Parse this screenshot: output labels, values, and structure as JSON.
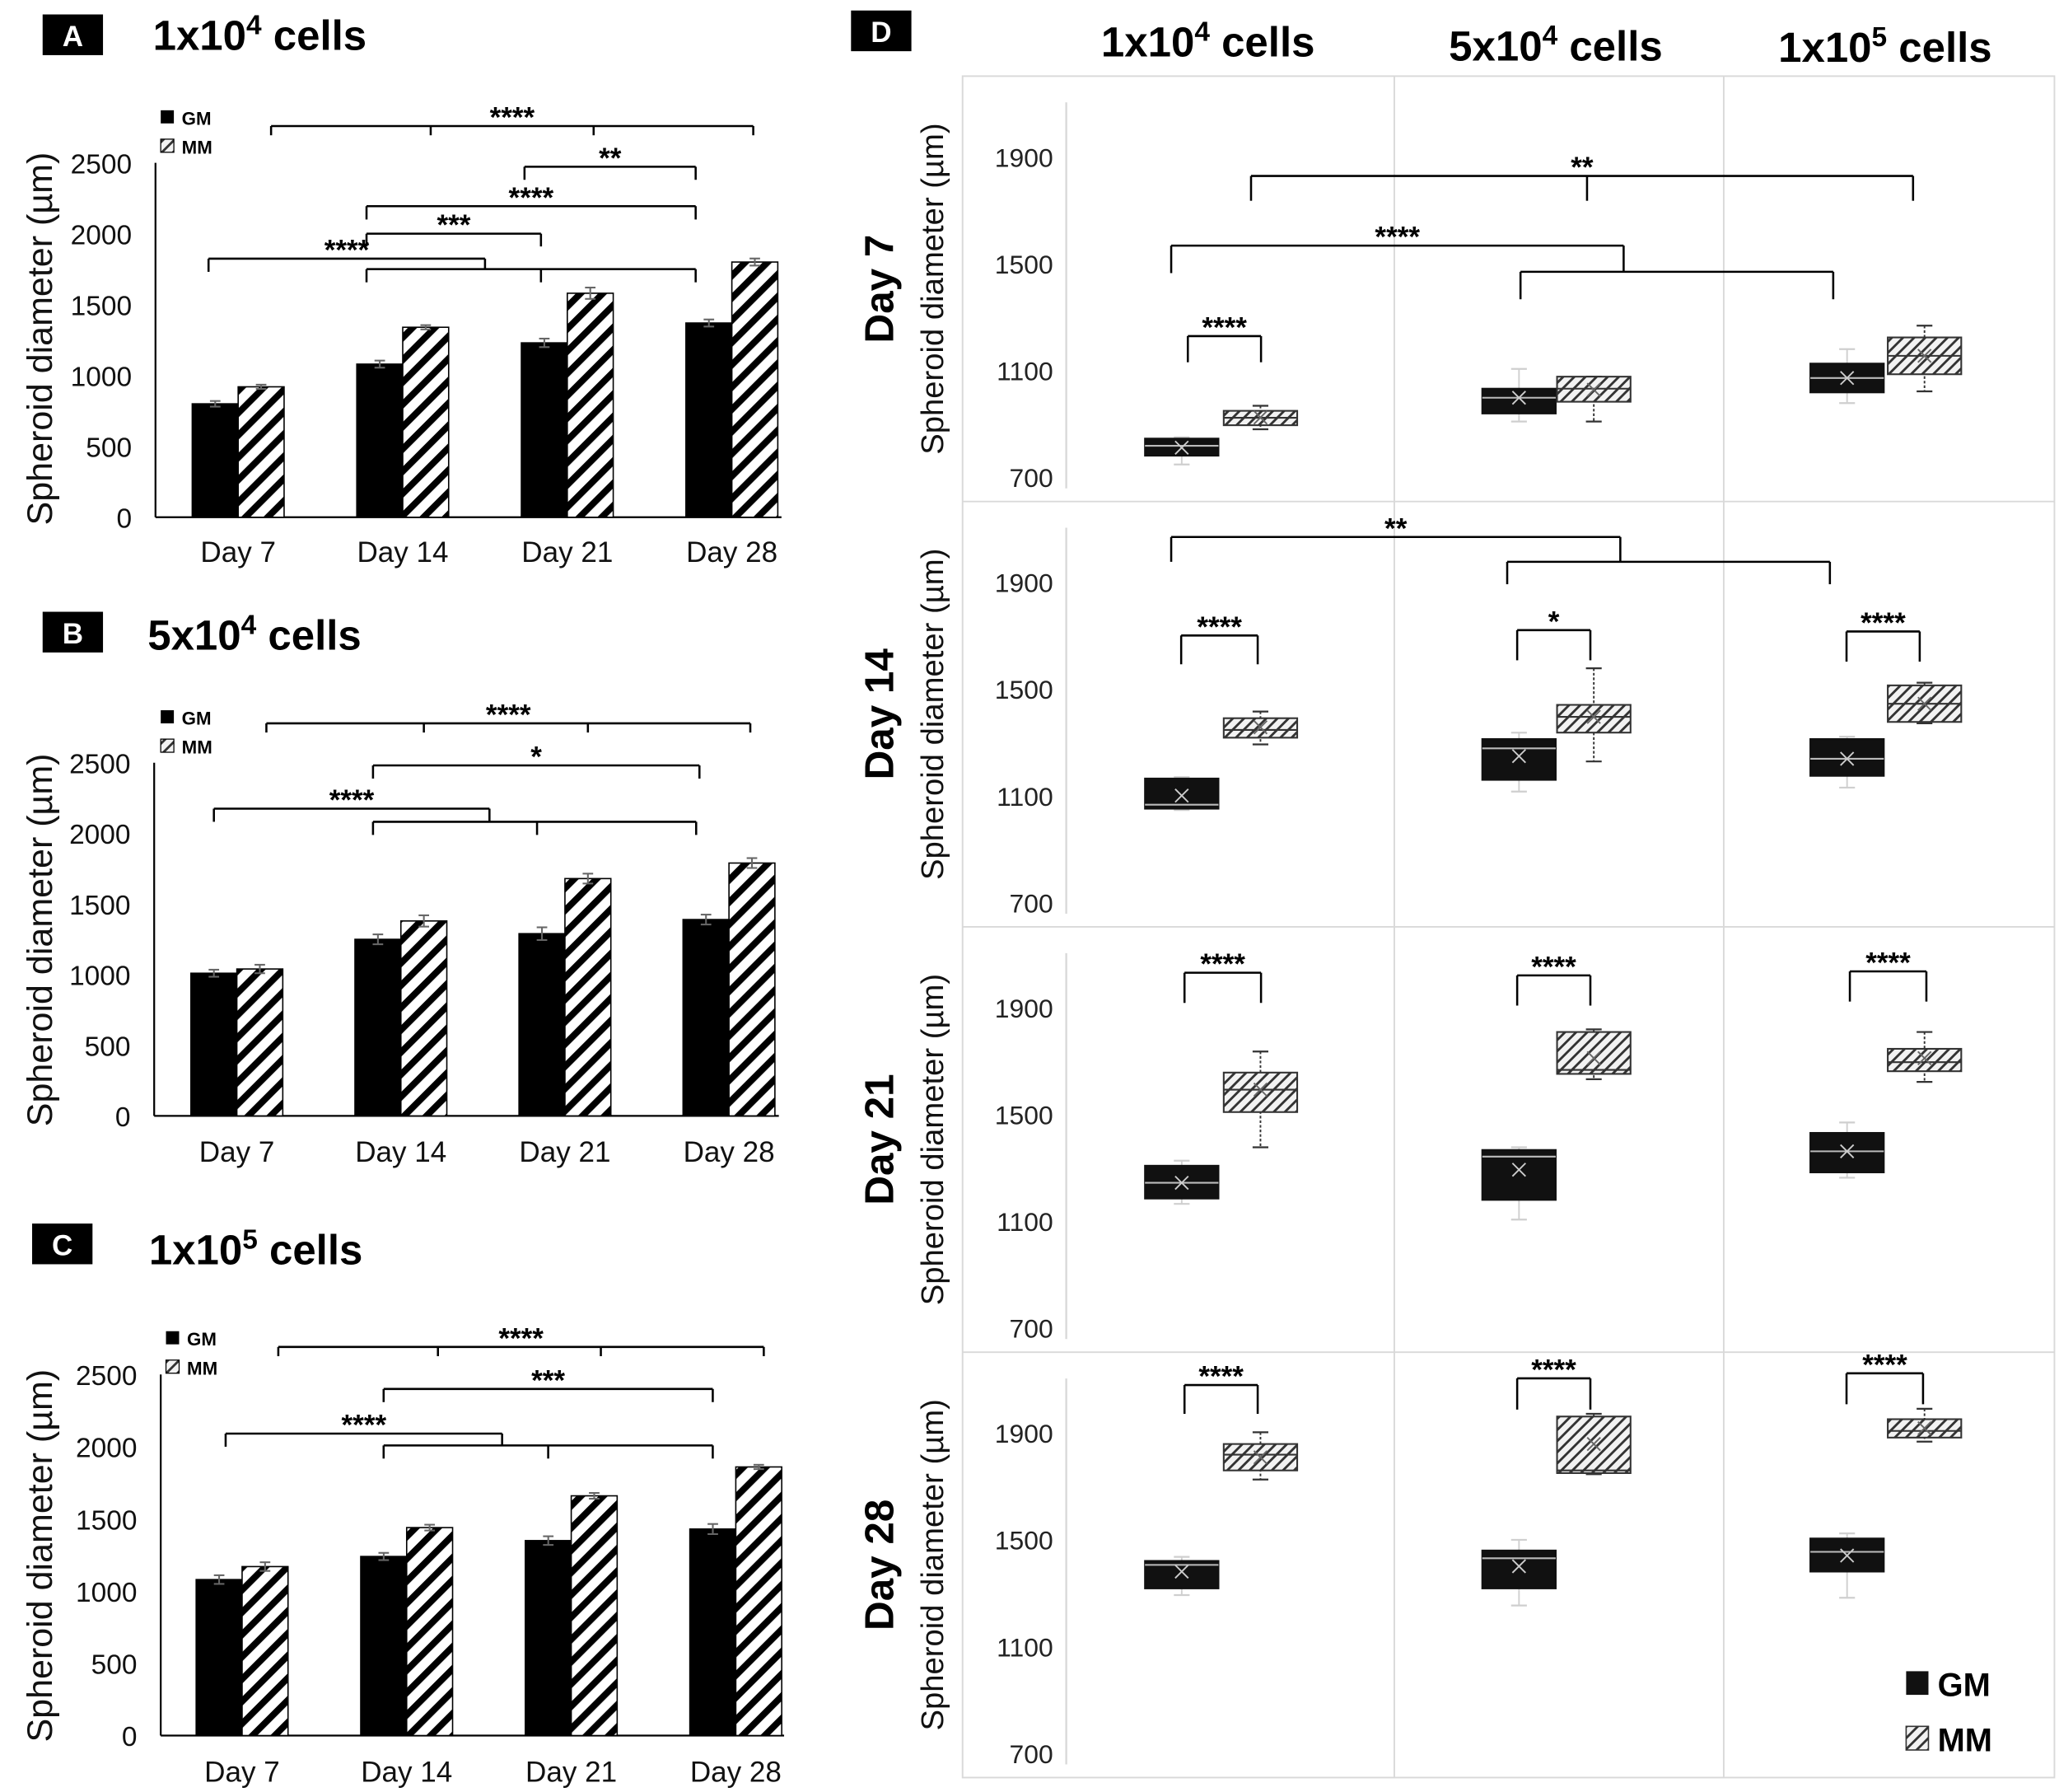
{
  "panel_labels": {
    "A": "A",
    "B": "B",
    "C": "C",
    "D": "D"
  },
  "legend": {
    "gm": "GM",
    "mm": "MM"
  },
  "colors": {
    "gm": "#000000",
    "mm_stripe": "#000000",
    "mm_bg": "#ffffff",
    "box_gm": "#111111",
    "box_mm_stripe": "#333333",
    "grid": "#d9d9d9"
  },
  "chart_data": [
    {
      "type": "bar",
      "panel": "A",
      "title": {
        "base": "1x10",
        "exp": "4",
        "suffix": " cells"
      },
      "ylabel": "Spheroid diameter (µm)",
      "ylim": [
        0,
        2500
      ],
      "yticks": [
        "0",
        "500",
        "1000",
        "1500",
        "2000",
        "2500"
      ],
      "categories": [
        "Day 7",
        "Day 14",
        "Day 21",
        "Day 28"
      ],
      "series": [
        {
          "name": "GM",
          "values": [
            800,
            1080,
            1230,
            1370
          ],
          "errors": [
            20,
            25,
            30,
            25
          ]
        },
        {
          "name": "MM",
          "values": [
            920,
            1340,
            1580,
            1800
          ],
          "errors": [
            15,
            15,
            40,
            25
          ]
        }
      ],
      "significance": [
        {
          "label": "****",
          "y": 2759,
          "ticks": [
            [
              0.2,
              2694
            ],
            [
              1.17,
              2694
            ],
            [
              2.16,
              2694
            ],
            [
              3.13,
              2694
            ]
          ]
        },
        {
          "label": "**",
          "y": 2472,
          "ticks": [
            [
              1.74,
              2380
            ],
            [
              2.78,
              2380
            ]
          ]
        },
        {
          "label": "****",
          "y": 2194,
          "ticks": [
            [
              0.78,
              2100
            ],
            [
              2.78,
              2100
            ]
          ]
        },
        {
          "label": "***",
          "y": 2000,
          "ticks": [
            [
              0.78,
              1910
            ],
            [
              1.84,
              1910
            ]
          ]
        },
        {
          "label": "****",
          "y": 1824,
          "ticks": [
            [
              -0.18,
              1731
            ],
            [
              1.5,
              1750
            ]
          ]
        },
        {
          "label": "",
          "y": 1750,
          "ticks": [
            [
              0.78,
              1657
            ],
            [
              1.84,
              1657
            ],
            [
              2.78,
              1657
            ]
          ]
        }
      ]
    },
    {
      "type": "bar",
      "panel": "B",
      "title": {
        "base": "5x10",
        "exp": "4",
        "suffix": " cells"
      },
      "ylabel": "Spheroid diameter (µm)",
      "ylim": [
        0,
        2500
      ],
      "yticks": [
        "0",
        "500",
        "1000",
        "1500",
        "2000",
        "2500"
      ],
      "categories": [
        "Day 7",
        "Day 14",
        "Day 21",
        "Day 28"
      ],
      "series": [
        {
          "name": "GM",
          "values": [
            1010,
            1250,
            1290,
            1390
          ],
          "errors": [
            25,
            35,
            45,
            35
          ]
        },
        {
          "name": "MM",
          "values": [
            1040,
            1380,
            1680,
            1790
          ],
          "errors": [
            30,
            40,
            35,
            35
          ]
        }
      ],
      "significance": [
        {
          "label": "****",
          "y": 2779,
          "ticks": [
            [
              0.18,
              2714
            ],
            [
              1.14,
              2714
            ],
            [
              2.14,
              2714
            ],
            [
              3.13,
              2714
            ]
          ]
        },
        {
          "label": "*",
          "y": 2481,
          "ticks": [
            [
              0.83,
              2388
            ],
            [
              2.82,
              2388
            ]
          ]
        },
        {
          "label": "****",
          "y": 2175,
          "ticks": [
            [
              -0.14,
              2082
            ],
            [
              1.54,
              2082
            ]
          ]
        },
        {
          "label": "",
          "y": 2082,
          "ticks": [
            [
              0.83,
              1989
            ],
            [
              1.83,
              1989
            ],
            [
              2.8,
              1989
            ]
          ]
        }
      ]
    },
    {
      "type": "bar",
      "panel": "C",
      "title": {
        "base": "1x10",
        "exp": "5",
        "suffix": " cells"
      },
      "ylabel": "Spheroid diameter (µm)",
      "ylim": [
        0,
        2500
      ],
      "yticks": [
        "0",
        "500",
        "1000",
        "1500",
        "2000",
        "2500"
      ],
      "categories": [
        "Day 7",
        "Day 14",
        "Day 21",
        "Day 28"
      ],
      "series": [
        {
          "name": "GM",
          "values": [
            1080,
            1240,
            1350,
            1430
          ],
          "errors": [
            30,
            25,
            30,
            35
          ]
        },
        {
          "name": "MM",
          "values": [
            1170,
            1440,
            1660,
            1860
          ],
          "errors": [
            30,
            20,
            20,
            15
          ]
        }
      ],
      "significance": [
        {
          "label": "****",
          "y": 2691,
          "ticks": [
            [
              0.22,
              2627
            ],
            [
              1.19,
              2627
            ],
            [
              2.18,
              2627
            ],
            [
              3.17,
              2627
            ]
          ]
        },
        {
          "label": "***",
          "y": 2400,
          "ticks": [
            [
              0.86,
              2309
            ],
            [
              2.86,
              2309
            ]
          ]
        },
        {
          "label": "****",
          "y": 2091,
          "ticks": [
            [
              -0.1,
              2000
            ],
            [
              1.58,
              2009
            ]
          ]
        },
        {
          "label": "",
          "y": 2009,
          "ticks": [
            [
              0.86,
              1918
            ],
            [
              1.86,
              1918
            ],
            [
              2.86,
              1918
            ]
          ]
        }
      ]
    },
    {
      "type": "box",
      "panel": "D",
      "columns": [
        {
          "base": "1x10",
          "exp": "4",
          "suffix": " cells"
        },
        {
          "base": "5x10",
          "exp": "4",
          "suffix": " cells"
        },
        {
          "base": "1x10",
          "exp": "5",
          "suffix": " cells"
        }
      ],
      "ylabel": "Spheroid diameter (µm)",
      "ylim": [
        700,
        2000
      ],
      "yticks": [
        "700",
        "1100",
        "1500",
        "1900"
      ],
      "rows": [
        {
          "label": "Day 7",
          "boxes": [
            [
              {
                "group": "GM",
                "min": 750,
                "q1": 783,
                "median": 820,
                "q3": 847,
                "max": 852,
                "mean": 813
              },
              {
                "group": "MM",
                "min": 882,
                "q1": 897,
                "median": 925,
                "q3": 951,
                "max": 970,
                "mean": 926
              }
            ],
            [
              {
                "group": "GM",
                "min": 911,
                "q1": 941,
                "median": 1000,
                "q3": 1034,
                "max": 1108,
                "mean": 1000
              },
              {
                "group": "MM",
                "min": 911,
                "q1": 985,
                "median": 1034,
                "q3": 1079,
                "max": 1079,
                "mean": 1030
              }
            ],
            [
              {
                "group": "GM",
                "min": 980,
                "q1": 1020,
                "median": 1074,
                "q3": 1128,
                "max": 1182,
                "mean": 1074
              },
              {
                "group": "MM",
                "min": 1024,
                "q1": 1088,
                "median": 1157,
                "q3": 1226,
                "max": 1270,
                "mean": 1157
              }
            ]
          ],
          "significance": [
            {
              "label": "**",
              "y": 1831,
              "ticks": [
                [
                  0.09,
                  1738
                ],
                [
                  1.1,
                  1738
                ],
                [
                  2.08,
                  1738
                ]
              ]
            },
            {
              "label": "****",
              "y": 1570,
              "ticks": [
                [
                  -0.15,
                  1467
                ],
                [
                  1.21,
                  1472
                ]
              ]
            },
            {
              "label": "",
              "y": 1472,
              "ticks": [
                [
                  0.9,
                  1369
                ],
                [
                  1.84,
                  1369
                ]
              ]
            },
            {
              "label": "****",
              "y": 1231,
              "ticks": [
                [
                  -0.1,
                  1133
                ],
                [
                  0.12,
                  1133
                ]
              ]
            }
          ]
        },
        {
          "label": "Day 14",
          "boxes": [
            [
              {
                "group": "GM",
                "min": 1049,
                "q1": 1054,
                "median": 1069,
                "q3": 1167,
                "max": 1172,
                "mean": 1103
              },
              {
                "group": "MM",
                "min": 1295,
                "q1": 1320,
                "median": 1349,
                "q3": 1393,
                "max": 1418,
                "mean": 1359
              }
            ],
            [
              {
                "group": "GM",
                "min": 1118,
                "q1": 1162,
                "median": 1280,
                "q3": 1315,
                "max": 1339,
                "mean": 1251
              },
              {
                "group": "MM",
                "min": 1231,
                "q1": 1339,
                "median": 1398,
                "q3": 1443,
                "max": 1580,
                "mean": 1398
              }
            ],
            [
              {
                "group": "GM",
                "min": 1133,
                "q1": 1177,
                "median": 1241,
                "q3": 1315,
                "max": 1324,
                "mean": 1241
              },
              {
                "group": "MM",
                "min": 1374,
                "q1": 1379,
                "median": 1447,
                "q3": 1516,
                "max": 1526,
                "mean": 1447
              }
            ]
          ],
          "significance": [
            {
              "label": "**",
              "y": 2072,
              "ticks": [
                [
                  -0.15,
                  1979
                ],
                [
                  1.2,
                  1979
                ]
              ]
            },
            {
              "label": "",
              "y": 1979,
              "ticks": [
                [
                  0.86,
                  1895
                ],
                [
                  1.83,
                  1895
                ]
              ]
            },
            {
              "label": "****",
              "y": 1703,
              "ticks": [
                [
                  -0.12,
                  1595
                ],
                [
                  0.11,
                  1595
                ]
              ]
            },
            {
              "label": "*",
              "y": 1723,
              "ticks": [
                [
                  0.89,
                  1610
                ],
                [
                  1.11,
                  1610
                ]
              ]
            },
            {
              "label": "****",
              "y": 1718,
              "ticks": [
                [
                  1.88,
                  1605
                ],
                [
                  2.1,
                  1605
                ]
              ]
            }
          ]
        },
        {
          "label": "Day 21",
          "boxes": [
            [
              {
                "group": "GM",
                "min": 1167,
                "q1": 1187,
                "median": 1246,
                "q3": 1310,
                "max": 1329,
                "mean": 1246
              },
              {
                "group": "MM",
                "min": 1379,
                "q1": 1511,
                "median": 1595,
                "q3": 1659,
                "max": 1738,
                "mean": 1595
              }
            ],
            [
              {
                "group": "GM",
                "min": 1108,
                "q1": 1182,
                "median": 1344,
                "q3": 1369,
                "max": 1379,
                "mean": 1295
              },
              {
                "group": "MM",
                "min": 1634,
                "q1": 1654,
                "median": 1669,
                "q3": 1811,
                "max": 1821,
                "mean": 1713
              }
            ],
            [
              {
                "group": "GM",
                "min": 1265,
                "q1": 1285,
                "median": 1364,
                "q3": 1433,
                "max": 1472,
                "mean": 1364
              },
              {
                "group": "MM",
                "min": 1624,
                "q1": 1664,
                "median": 1698,
                "q3": 1748,
                "max": 1811,
                "mean": 1713
              }
            ]
          ],
          "significance": [
            {
              "label": "****",
              "y": 2033,
              "ticks": [
                [
                  -0.11,
                  1920
                ],
                [
                  0.12,
                  1920
                ]
              ]
            },
            {
              "label": "****",
              "y": 2023,
              "ticks": [
                [
                  0.89,
                  1910
                ],
                [
                  1.11,
                  1910
                ]
              ]
            },
            {
              "label": "****",
              "y": 2038,
              "ticks": [
                [
                  1.89,
                  1925
                ],
                [
                  2.12,
                  1925
                ]
              ]
            }
          ]
        },
        {
          "label": "Day 28",
          "boxes": [
            [
              {
                "group": "GM",
                "min": 1295,
                "q1": 1320,
                "median": 1408,
                "q3": 1423,
                "max": 1438,
                "mean": 1383
              },
              {
                "group": "MM",
                "min": 1728,
                "q1": 1762,
                "median": 1821,
                "q3": 1861,
                "max": 1905,
                "mean": 1811
              }
            ],
            [
              {
                "group": "GM",
                "min": 1256,
                "q1": 1320,
                "median": 1433,
                "q3": 1462,
                "max": 1502,
                "mean": 1403
              },
              {
                "group": "MM",
                "min": 1748,
                "q1": 1752,
                "median": 1762,
                "q3": 1964,
                "max": 1974,
                "mean": 1861
              }
            ],
            [
              {
                "group": "GM",
                "min": 1285,
                "q1": 1383,
                "median": 1457,
                "q3": 1507,
                "max": 1526,
                "mean": 1443
              },
              {
                "group": "MM",
                "min": 1870,
                "q1": 1885,
                "median": 1910,
                "q3": 1954,
                "max": 1993,
                "mean": 1920
              }
            ]
          ],
          "significance": [
            {
              "label": "****",
              "y": 2082,
              "ticks": [
                [
                  -0.11,
                  1974
                ],
                [
                  0.11,
                  1974
                ]
              ]
            },
            {
              "label": "****",
              "y": 2107,
              "ticks": [
                [
                  0.89,
                  1990
                ],
                [
                  1.11,
                  1990
                ]
              ]
            },
            {
              "label": "****",
              "y": 2126,
              "ticks": [
                [
                  1.88,
                  2010
                ],
                [
                  2.11,
                  2010
                ]
              ]
            }
          ]
        }
      ]
    }
  ]
}
